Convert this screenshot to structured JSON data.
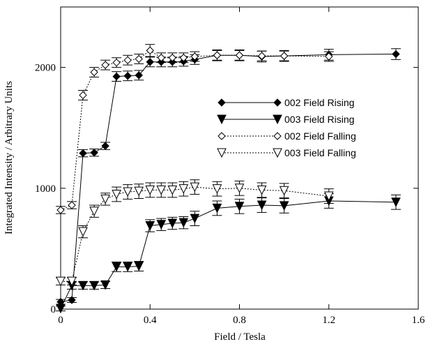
{
  "chart_data": {
    "type": "line",
    "xlabel": "Field / Tesla",
    "ylabel": "Integrated Intensity / Arbitrary Units",
    "xlim": [
      0,
      1.6
    ],
    "ylim": [
      0,
      2500
    ],
    "x_ticks": [
      "0",
      "0.4",
      "0.8",
      "1.2",
      "1.6"
    ],
    "y_ticks": [
      "0",
      "1000",
      "2000"
    ],
    "legend_position": "center-right",
    "series": [
      {
        "name": "002 Field Rising",
        "marker": "filled-diamond",
        "line": "solid",
        "x": [
          0,
          0.05,
          0.1,
          0.15,
          0.2,
          0.25,
          0.3,
          0.35,
          0.4,
          0.45,
          0.5,
          0.55,
          0.6,
          0.7,
          0.8,
          0.9,
          1.0,
          1.2,
          1.5
        ],
        "y": [
          60,
          75,
          1290,
          1295,
          1350,
          1925,
          1930,
          1935,
          2045,
          2045,
          2045,
          2050,
          2065,
          2100,
          2100,
          2090,
          2095,
          2105,
          2110
        ],
        "err": [
          20,
          20,
          30,
          30,
          30,
          40,
          40,
          40,
          40,
          40,
          40,
          40,
          40,
          45,
          45,
          45,
          45,
          45,
          45
        ]
      },
      {
        "name": "003 Field Rising",
        "marker": "filled-triangle-down",
        "line": "solid",
        "x": [
          0,
          0.05,
          0.1,
          0.15,
          0.2,
          0.25,
          0.3,
          0.35,
          0.4,
          0.45,
          0.5,
          0.55,
          0.6,
          0.7,
          0.8,
          0.9,
          1.0,
          1.2,
          1.5
        ],
        "y": [
          5,
          195,
          195,
          195,
          200,
          350,
          350,
          355,
          690,
          700,
          710,
          715,
          750,
          835,
          850,
          860,
          855,
          895,
          885
        ],
        "err": [
          20,
          30,
          30,
          30,
          30,
          40,
          40,
          40,
          50,
          50,
          50,
          50,
          60,
          60,
          60,
          60,
          60,
          60,
          60
        ]
      },
      {
        "name": "002 Field Falling",
        "marker": "open-diamond",
        "line": "dotted",
        "x": [
          0,
          0.05,
          0.1,
          0.15,
          0.2,
          0.25,
          0.3,
          0.35,
          0.4,
          0.45,
          0.5,
          0.55,
          0.6,
          0.7,
          0.8,
          0.9,
          1.0,
          1.2
        ],
        "y": [
          820,
          860,
          1770,
          1960,
          2020,
          2040,
          2060,
          2070,
          2140,
          2080,
          2080,
          2080,
          2090,
          2100,
          2100,
          2095,
          2095,
          2090
        ],
        "err": [
          30,
          30,
          40,
          40,
          40,
          40,
          40,
          40,
          50,
          40,
          40,
          40,
          40,
          40,
          40,
          40,
          40,
          40
        ]
      },
      {
        "name": "003 Field Falling",
        "marker": "open-triangle-down",
        "line": "dotted",
        "x": [
          0,
          0.05,
          0.1,
          0.15,
          0.2,
          0.25,
          0.3,
          0.35,
          0.4,
          0.45,
          0.5,
          0.55,
          0.6,
          0.7,
          0.8,
          0.9,
          1.0,
          1.2
        ],
        "y": [
          230,
          230,
          640,
          810,
          910,
          950,
          970,
          975,
          985,
          985,
          985,
          995,
          1010,
          995,
          1000,
          985,
          980,
          935
        ],
        "err": [
          30,
          30,
          50,
          50,
          50,
          60,
          60,
          60,
          60,
          60,
          60,
          60,
          60,
          60,
          60,
          60,
          60,
          60
        ]
      }
    ]
  }
}
